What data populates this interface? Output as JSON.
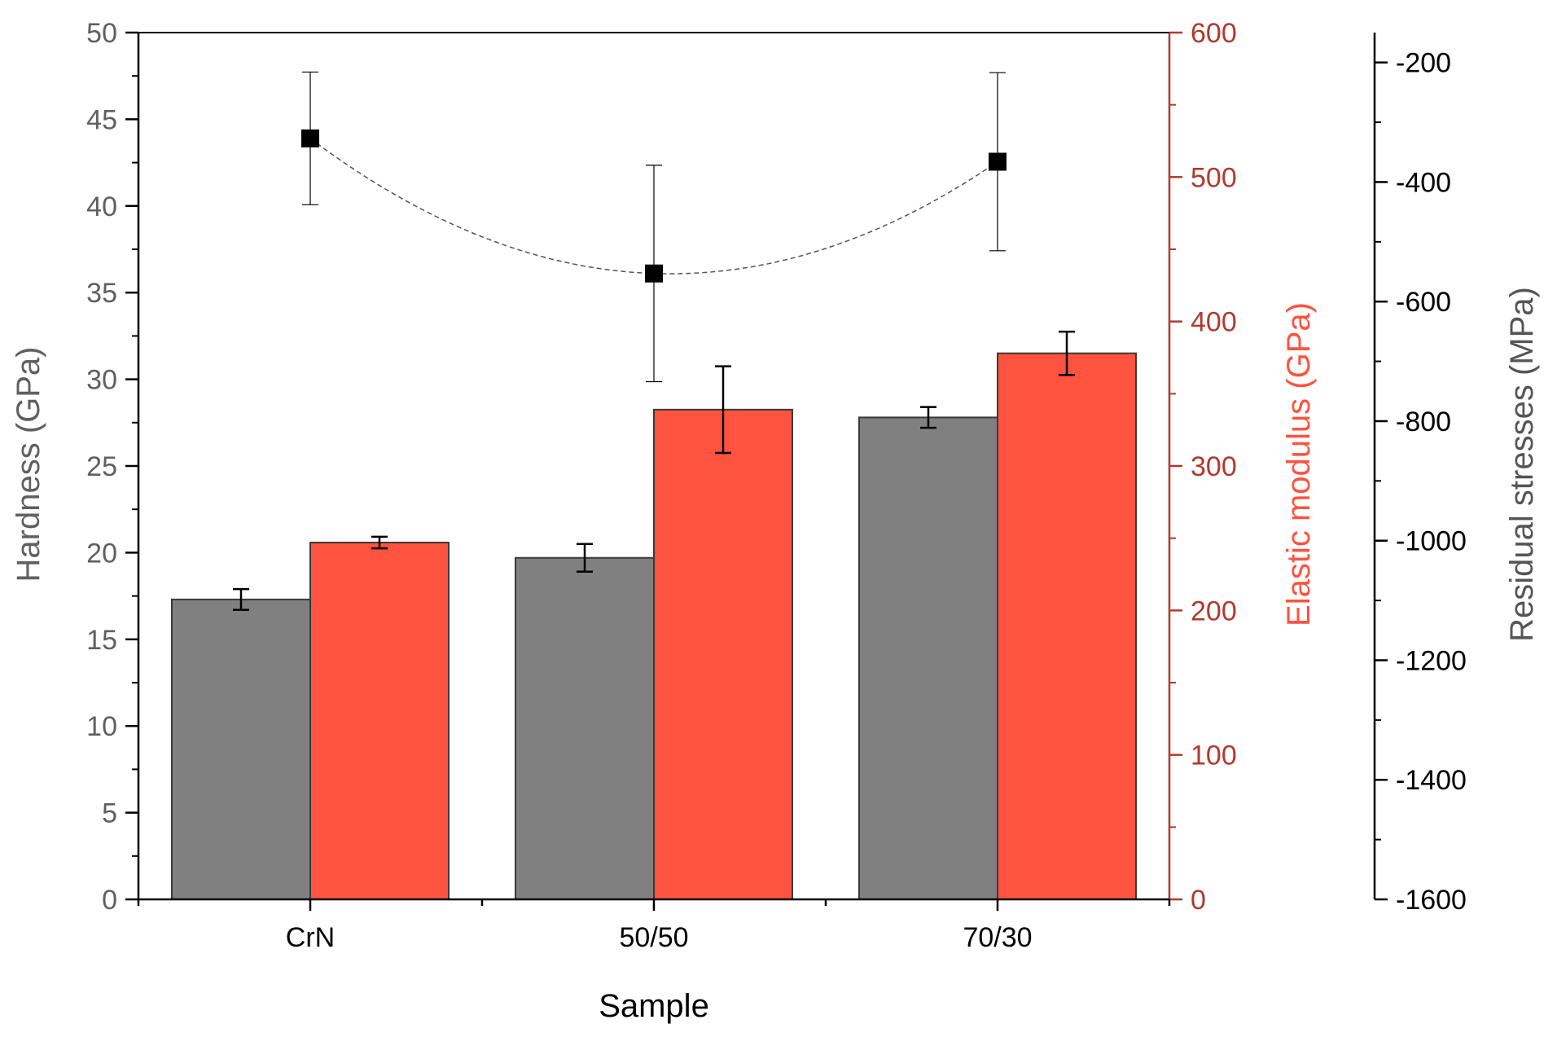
{
  "chart_data": {
    "type": "bar",
    "title": "",
    "xlabel": "Sample",
    "categories": [
      "CrN",
      "50/50",
      "70/30"
    ],
    "hardness_axis": {
      "label": "Hardness (GPa)",
      "ylim": [
        0,
        50
      ],
      "ticks": [
        0,
        5,
        10,
        15,
        20,
        25,
        30,
        35,
        40,
        45,
        50
      ],
      "color": "#606060"
    },
    "modulus_axis": {
      "label": "Elastic modulus (GPa)",
      "ylim": [
        0,
        600
      ],
      "ticks": [
        0,
        100,
        200,
        300,
        400,
        500,
        600
      ],
      "color": "#B03A2E",
      "label_color": "#FF5340"
    },
    "stress_axis": {
      "label": "Residual stresses (MPa)",
      "ylim": [
        -1600,
        -150
      ],
      "ticks": [
        -1600,
        -1400,
        -1200,
        -1000,
        -800,
        -600,
        -400,
        -200
      ],
      "color": "#000000",
      "label_color": "#555555"
    },
    "series": [
      {
        "name": "Hardness",
        "axis": "hardness",
        "kind": "bar",
        "color": "#808080",
        "values": [
          17.3,
          19.7,
          27.8
        ],
        "errors": [
          0.6,
          0.8,
          0.6
        ]
      },
      {
        "name": "Elastic modulus",
        "axis": "modulus",
        "kind": "bar",
        "color": "#FF5340",
        "values": [
          247,
          339,
          378
        ],
        "errors": [
          4,
          30,
          15
        ]
      },
      {
        "name": "Residual stresses",
        "axis": "stress",
        "kind": "scatter",
        "color": "#000000",
        "values": [
          -327,
          -553,
          -366
        ],
        "errors": [
          111,
          181,
          149
        ]
      }
    ]
  }
}
